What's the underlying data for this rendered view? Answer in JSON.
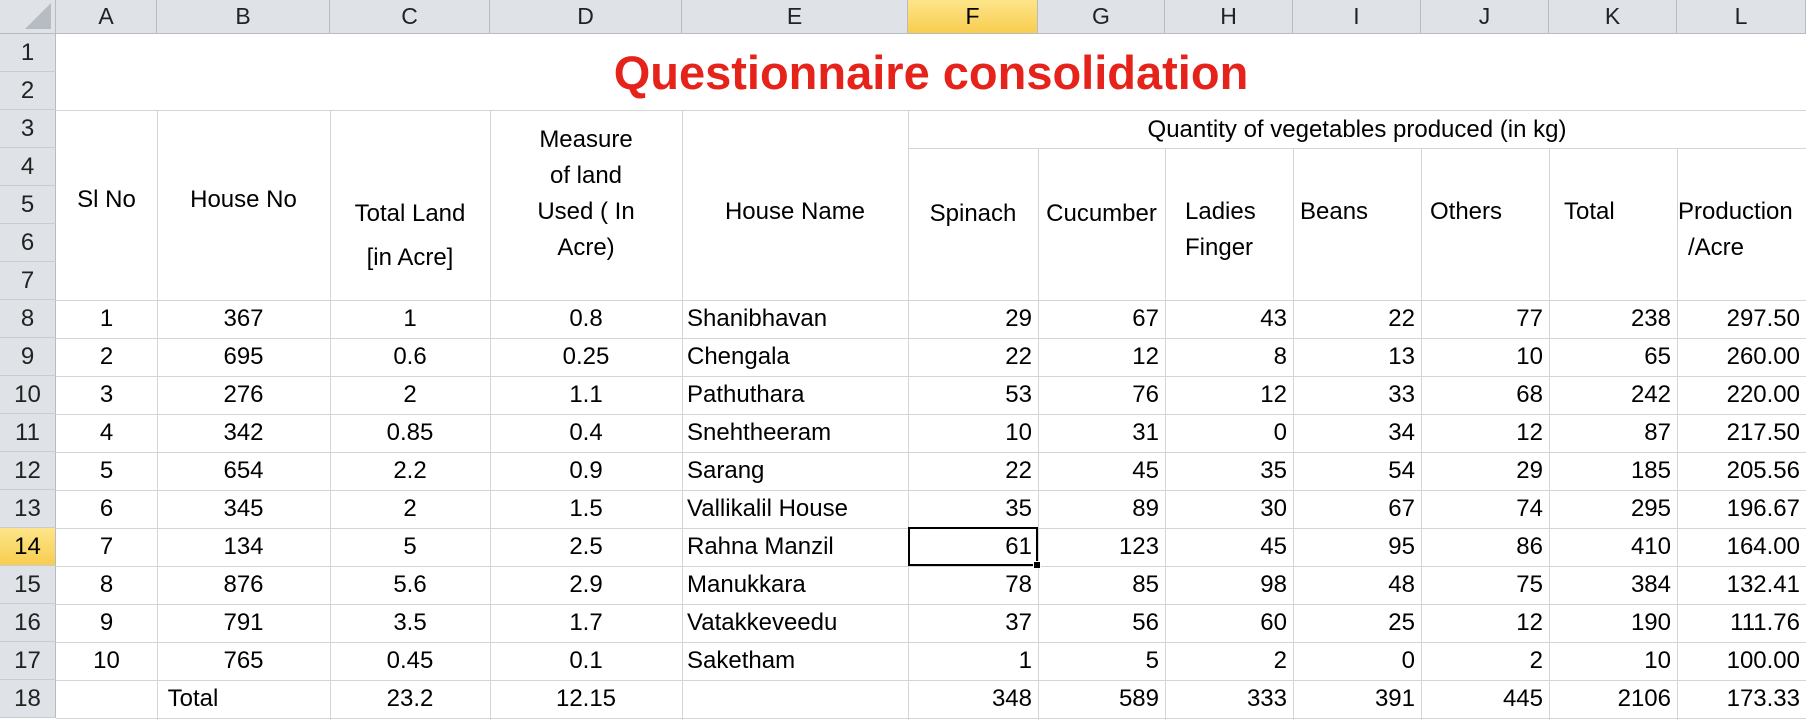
{
  "columns": [
    "A",
    "B",
    "C",
    "D",
    "E",
    "F",
    "G",
    "H",
    "I",
    "J",
    "K",
    "L"
  ],
  "selected_column": "F",
  "rows": [
    "1",
    "2",
    "3",
    "4",
    "5",
    "6",
    "7",
    "8",
    "9",
    "10",
    "11",
    "12",
    "13",
    "14",
    "15",
    "16",
    "17",
    "18"
  ],
  "selected_row": "14",
  "title": "Questionnaire consolidation",
  "headers": {
    "sl_no": "Sl No",
    "house_no": "House No",
    "total_land_1": "Total Land",
    "total_land_2": "[in Acre]",
    "measure_1": "Measure",
    "measure_2": "of land",
    "measure_3": "Used ( In",
    "measure_4": "Acre)",
    "house_name": "House Name",
    "quantity_group": "Quantity of vegetables produced (in kg)",
    "spinach": "Spinach",
    "cucumber": "Cucumber",
    "ladies_1": "Ladies",
    "ladies_2": "Finger",
    "beans": "Beans",
    "others": "Others",
    "total": "Total",
    "production_1": "Production",
    "production_2": "/Acre"
  },
  "data_rows": [
    [
      "1",
      "367",
      "1",
      "0.8",
      "Shanibhavan",
      "29",
      "67",
      "43",
      "22",
      "77",
      "238",
      "297.50"
    ],
    [
      "2",
      "695",
      "0.6",
      "0.25",
      "Chengala",
      "22",
      "12",
      "8",
      "13",
      "10",
      "65",
      "260.00"
    ],
    [
      "3",
      "276",
      "2",
      "1.1",
      "Pathuthara",
      "53",
      "76",
      "12",
      "33",
      "68",
      "242",
      "220.00"
    ],
    [
      "4",
      "342",
      "0.85",
      "0.4",
      "Snehtheeram",
      "10",
      "31",
      "0",
      "34",
      "12",
      "87",
      "217.50"
    ],
    [
      "5",
      "654",
      "2.2",
      "0.9",
      "Sarang",
      "22",
      "45",
      "35",
      "54",
      "29",
      "185",
      "205.56"
    ],
    [
      "6",
      "345",
      "2",
      "1.5",
      "Vallikalil House",
      "35",
      "89",
      "30",
      "67",
      "74",
      "295",
      "196.67"
    ],
    [
      "7",
      "134",
      "5",
      "2.5",
      "Rahna Manzil",
      "61",
      "123",
      "45",
      "95",
      "86",
      "410",
      "164.00"
    ],
    [
      "8",
      "876",
      "5.6",
      "2.9",
      "Manukkara",
      "78",
      "85",
      "98",
      "48",
      "75",
      "384",
      "132.41"
    ],
    [
      "9",
      "791",
      "3.5",
      "1.7",
      "Vatakkeveedu",
      "37",
      "56",
      "60",
      "25",
      "12",
      "190",
      "111.76"
    ],
    [
      "10",
      "765",
      "0.45",
      "0.1",
      "Saketham",
      "1",
      "5",
      "2",
      "0",
      "2",
      "10",
      "100.00"
    ]
  ],
  "total_row": {
    "label": "Total",
    "total_land": "23.2",
    "measure": "12.15",
    "spinach": "348",
    "cucumber": "589",
    "ladies_finger": "333",
    "beans": "391",
    "others": "445",
    "total": "2106",
    "production": "173.33"
  },
  "colors": {
    "title": "#e5231b",
    "header_bg": "#dfe3e8",
    "selected_header": "#f8cd4f",
    "grid": "#d4d4d4"
  }
}
